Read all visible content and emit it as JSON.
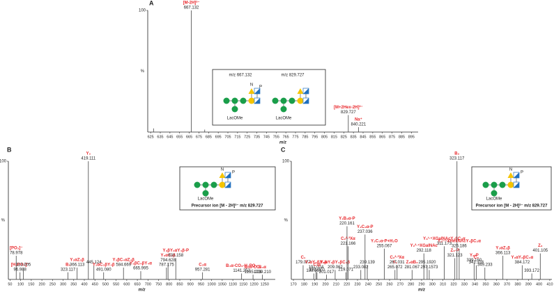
{
  "chart_data": [
    {
      "type": "spectrum",
      "title": "A",
      "xlabel": "m/z",
      "ylabel": "%",
      "color": "#444444",
      "label_color": "#e8262a",
      "x": [
        628,
        667.132,
        681,
        829.727,
        840.221
      ],
      "values": [
        3,
        100,
        2,
        14,
        4
      ],
      "x_labels": [
        null,
        "667.132",
        null,
        "829.727",
        "840.221"
      ],
      "ion_labels": [
        null,
        "[M-2H]²⁻",
        null,
        "[M+2Hex-2H]²⁻",
        "Na⁺"
      ],
      "xlim": [
        622,
        902
      ],
      "xticks": [
        625,
        635,
        645,
        655,
        665,
        675,
        685,
        695,
        705,
        715,
        725,
        735,
        745,
        755,
        765,
        775,
        785,
        795,
        805,
        815,
        825,
        835,
        845,
        855,
        865,
        875,
        885,
        895
      ],
      "ylim": [
        0,
        100
      ],
      "yticks": [
        100
      ]
    },
    {
      "type": "spectrum",
      "title": "B",
      "xlabel": "m/z",
      "ylabel": "%",
      "color": "#444444",
      "label_color": "#e8262a",
      "x": [
        78.978,
        96.988,
        113.005,
        323.117,
        366.113,
        419.111,
        445.124,
        491.08,
        584.669,
        665.995,
        787.175,
        794.628,
        831.158,
        957.281,
        1141.252,
        1195.223,
        1239.21
      ],
      "values": [
        20,
        6,
        10,
        6,
        10,
        100,
        12,
        6,
        10,
        7,
        10,
        14,
        18,
        6,
        5,
        4,
        4
      ],
      "x_labels": [
        "78.978",
        "96.988",
        "113.005",
        "323.117",
        "366.113",
        "419.111",
        "445.124",
        "491.080",
        "584.669",
        "665.995",
        "787.175",
        "794.628",
        "831.158",
        "957.281",
        "1141.252",
        "1195.223",
        "1239.210"
      ],
      "ion_labels": [
        "[PO₃]⁻",
        "[H₂PO₄]⁻",
        null,
        "B₂",
        "Y₃αZ₃β",
        "Y₂",
        null,
        "Y₃αC₃βY₄β",
        "Y₃βC₄αZ₄β",
        "Y₃βC₄βY₄α",
        null,
        "Y₃αC₃β",
        "Y₃βY₃αY₄β-P",
        "C₃α",
        "B₄α-CO₂-H₃PO₄",
        "B₄α-CO₂",
        "B₄α"
      ],
      "xlim": [
        42,
        1300
      ],
      "xticks": [
        50,
        100,
        150,
        200,
        250,
        300,
        350,
        400,
        450,
        500,
        550,
        600,
        650,
        700,
        750,
        800,
        850,
        900,
        950,
        1000,
        1050,
        1100,
        1150,
        1200,
        1250
      ],
      "ylim": [
        0,
        100
      ],
      "yticks": [
        100
      ]
    },
    {
      "type": "spectrum",
      "title": "C",
      "xlabel": "m/z",
      "ylabel": "%",
      "color": "#444444",
      "label_color": "#e8262a",
      "x": [
        179.077,
        189.061,
        191.074,
        192.07,
        201.017,
        209.062,
        219.071,
        220.161,
        221.166,
        233.082,
        237.036,
        239.139,
        255.067,
        265.072,
        267.031,
        281.067,
        292.118,
        295.192,
        297.1573,
        311.173,
        321.123,
        323.117,
        325.186,
        339.15,
        341.118,
        349.233,
        366.113,
        384.172,
        393.172,
        401.105
      ],
      "values": [
        12,
        5,
        8,
        6,
        4,
        8,
        6,
        45,
        28,
        8,
        38,
        12,
        26,
        8,
        12,
        8,
        22,
        12,
        8,
        28,
        18,
        100,
        26,
        14,
        12,
        10,
        20,
        12,
        5,
        22
      ],
      "x_labels": [
        "179.077",
        "189.061",
        "191.074",
        "192.070",
        "201.017",
        "209.062",
        "219.071",
        "220.161",
        "221.166",
        "233.082",
        "237.036",
        "239.139",
        "255.067",
        "265.072",
        "267.031",
        "281.067",
        "292.118",
        "295.1920",
        "297.1573",
        "311.173",
        "321.123",
        "323.117",
        "325.186",
        "339.150",
        "341.118",
        "349.233",
        "366.113",
        "384.172",
        "393.172",
        "401.105"
      ],
      "ion_labels": [
        "C₁",
        null,
        "Y₃αY₃βY₄β",
        "C₁β",
        null,
        "Y₃αY₃βY₄βC₄β",
        null,
        "Y₁B₃α-P",
        "C₂²·³Xα",
        null,
        "Y₂C₃α-P",
        null,
        "Y₂C₃α-P+H₂O",
        "Y₁",
        "C₂²·³Xα",
        "Z₂αB₂",
        "Y₂²·⁴XGalNAc",
        null,
        null,
        "Y₃¹·⁵XGalNAcY₄βC₃α",
        "Z₃-P",
        "B₂",
        "Y₃¹·⁵XHexNAcY₄βC₃α",
        "Y₃-P",
        "C₃",
        null,
        "Y₃αZ₃β",
        "Y₃αY₃βC₄α",
        null,
        "Z₃"
      ],
      "xlim": [
        168,
        412
      ],
      "xticks": [
        170,
        180,
        190,
        200,
        210,
        220,
        230,
        240,
        250,
        260,
        270,
        280,
        290,
        300,
        310,
        320,
        330,
        340,
        350,
        360,
        370,
        380,
        390,
        400,
        410
      ],
      "ylim": [
        0,
        100
      ],
      "yticks": [
        100
      ]
    }
  ],
  "insets": [
    {
      "labels": [
        "m/z 667.132",
        "m/z 829.727"
      ],
      "reducing_end": [
        "LacOMe",
        "LacOMe"
      ],
      "marks": [
        "N",
        "P"
      ]
    },
    {
      "caption": "Precursor ion [M - 2H]²⁻ m/z 829.727",
      "reducing_end": "LacOMe",
      "marks": [
        "N",
        "P"
      ]
    },
    {
      "caption": "Precursor ion [M - 2H]²⁻ m/z 829.727",
      "reducing_end": "LacOMe",
      "marks": [
        "N",
        "P"
      ]
    }
  ]
}
